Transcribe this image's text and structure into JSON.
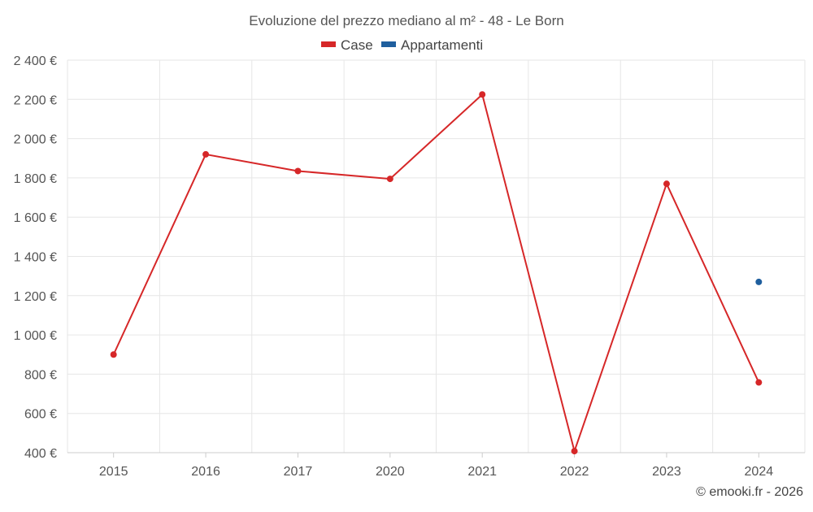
{
  "chart_data": {
    "type": "line",
    "title": "Evoluzione del prezzo mediano al m² - 48 - Le Born",
    "categories": [
      "2015",
      "2016",
      "2017",
      "2020",
      "2021",
      "2022",
      "2023",
      "2024"
    ],
    "series": [
      {
        "name": "Case",
        "color": "#d62728",
        "values": [
          900,
          1920,
          1835,
          1795,
          2225,
          408,
          1770,
          758
        ]
      },
      {
        "name": "Appartamenti",
        "color": "#1f5f9e",
        "values": [
          null,
          null,
          null,
          null,
          null,
          null,
          null,
          1270
        ]
      }
    ],
    "ylim": [
      400,
      2400
    ],
    "yticks": [
      "2 400 €",
      "2 200 €",
      "2 000 €",
      "1 800 €",
      "1 600 €",
      "1 400 €",
      "1 200 €",
      "1 000 €",
      "800 €",
      "600 €",
      "400 €"
    ],
    "ytick_values": [
      2400,
      2200,
      2000,
      1800,
      1600,
      1400,
      1200,
      1000,
      800,
      600,
      400
    ],
    "grid": true,
    "legend_position": "top-center"
  },
  "credit": "© emooki.fr - 2026"
}
